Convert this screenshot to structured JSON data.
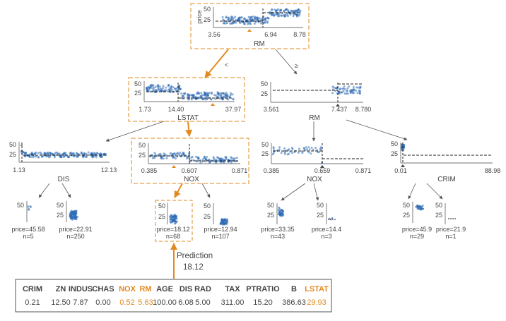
{
  "root": {
    "feature": "RM",
    "ylabel": "price",
    "ticks": [
      "3.56",
      "6.94",
      "8.78"
    ],
    "yticks": [
      "50",
      "25"
    ]
  },
  "edges": {
    "left": "<",
    "right": "≥"
  },
  "n_lstat": {
    "feature": "LSTAT",
    "ticks": [
      "1.73",
      "14.40",
      "37.97"
    ],
    "yticks": [
      "50",
      "25"
    ]
  },
  "n_rm": {
    "feature": "RM",
    "ticks": [
      "3.561",
      "7.437",
      "8.780"
    ],
    "yticks": [
      "50",
      "25"
    ]
  },
  "n_dis": {
    "feature": "DIS",
    "ticks": [
      "1.13",
      "12.13"
    ],
    "yticks": [
      "50",
      "25"
    ]
  },
  "n_nox1": {
    "feature": "NOX",
    "ticks": [
      "0.385",
      "0.607",
      "0.871"
    ],
    "yticks": [
      "50",
      "25"
    ]
  },
  "n_nox2": {
    "feature": "NOX",
    "ticks": [
      "0.385",
      "0.659",
      "0.871"
    ],
    "yticks": [
      "50",
      "25"
    ]
  },
  "n_crim": {
    "feature": "CRIM",
    "ticks": [
      "0.01",
      "88.98"
    ],
    "yticks": [
      "50",
      "25"
    ]
  },
  "leaves": [
    {
      "price": "price=45.58",
      "n": "n=5"
    },
    {
      "price": "price=22.91",
      "n": "n=250"
    },
    {
      "price": "price=18.12",
      "n": "n=68"
    },
    {
      "price": "price=12.94",
      "n": "n=107"
    },
    {
      "price": "price=33.35",
      "n": "n=43"
    },
    {
      "price": "price=14.4",
      "n": "n=3"
    },
    {
      "price": "price=45.9",
      "n": "n=29"
    },
    {
      "price": "price=21.9",
      "n": "n=1"
    }
  ],
  "prediction": {
    "label": "Prediction",
    "value": "18.12"
  },
  "instance": {
    "headers": [
      "CRIM",
      "ZN",
      "INDUS",
      "CHAS",
      "NOX",
      "RM",
      "AGE",
      "DIS",
      "RAD",
      "TAX",
      "PTRATIO",
      "B",
      "LSTAT"
    ],
    "values": [
      "0.21",
      "12.50",
      "7.87",
      "0.00",
      "0.52",
      "5.63",
      "100.00",
      "6.08",
      "5.00",
      "311.00",
      "15.20",
      "386.63",
      "29.93"
    ],
    "highlighted": [
      "NOX",
      "RM",
      "LSTAT"
    ]
  },
  "colors": {
    "highlight": "#e28a1f",
    "point": "#2f6bb5",
    "text": "#444444",
    "axis": "#444444",
    "edge": "#555555"
  }
}
